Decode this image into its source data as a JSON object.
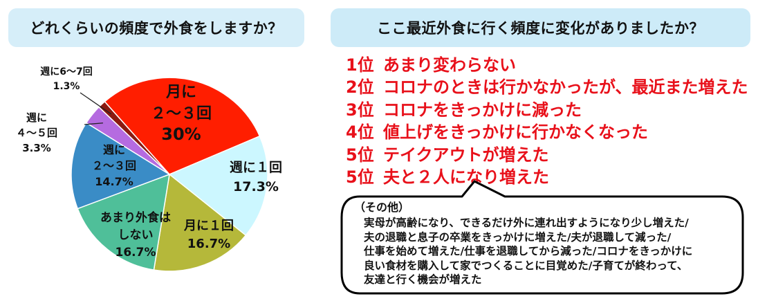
{
  "chart_data": {
    "type": "pie",
    "title": "どれくらいの頻度で外食をしますか？",
    "slices": [
      {
        "label_lines": [
          "月に",
          "２～３回"
        ],
        "value_text": "30%",
        "value": 30.0,
        "color": "#ff1e00"
      },
      {
        "label_lines": [
          "週に１回"
        ],
        "value_text": "17.3%",
        "value": 17.3,
        "color": "#ccf7ff"
      },
      {
        "label_lines": [
          "月に１回"
        ],
        "value_text": "16.7%",
        "value": 16.7,
        "color": "#b5b83a"
      },
      {
        "label_lines": [
          "あまり外食は",
          "しない"
        ],
        "value_text": "16.7%",
        "value": 16.7,
        "color": "#4fbf99"
      },
      {
        "label_lines": [
          "週に",
          "２～３回"
        ],
        "value_text": "14.7%",
        "value": 14.7,
        "color": "#3a8cc6"
      },
      {
        "label_lines": [
          "週に",
          "４～５回"
        ],
        "value_text": "3.3%",
        "value": 3.3,
        "color": "#b56be0"
      },
      {
        "label_lines": [
          "週に6～7回"
        ],
        "value_text": "1.3%",
        "value": 1.3,
        "color": "#8b1a10"
      }
    ]
  },
  "right_panel": {
    "title": "ここ最近外食に行く頻度に変化がありましたか？",
    "ranking": [
      {
        "position": "1位",
        "text": "あまり変わらない"
      },
      {
        "position": "2位",
        "text": "コロナのときは行かなかったが、最近また増えた"
      },
      {
        "position": "3位",
        "text": "コロナをきっかけに減った"
      },
      {
        "position": "4位",
        "text": "値上げをきっかけに行かなくなった"
      },
      {
        "position": "5位",
        "text": "テイクアウトが増えた"
      },
      {
        "position": "5位",
        "text": "夫と２人になり増えた"
      }
    ],
    "other": {
      "title": "（その他）",
      "lines": [
        "実母が高齢になり、できるだけ外に連れ出すようになり少し増えた/",
        "夫の退職と息子の卒業をきっかけに増えた/夫が退職して減った/",
        "仕事を始めて増えた/仕事を退職してから減った/コロナをきっかけに",
        "良い食材を購入して家でつくることに目覚めた/子育てが終わって、",
        "友達と行く機会が増えた"
      ]
    }
  }
}
